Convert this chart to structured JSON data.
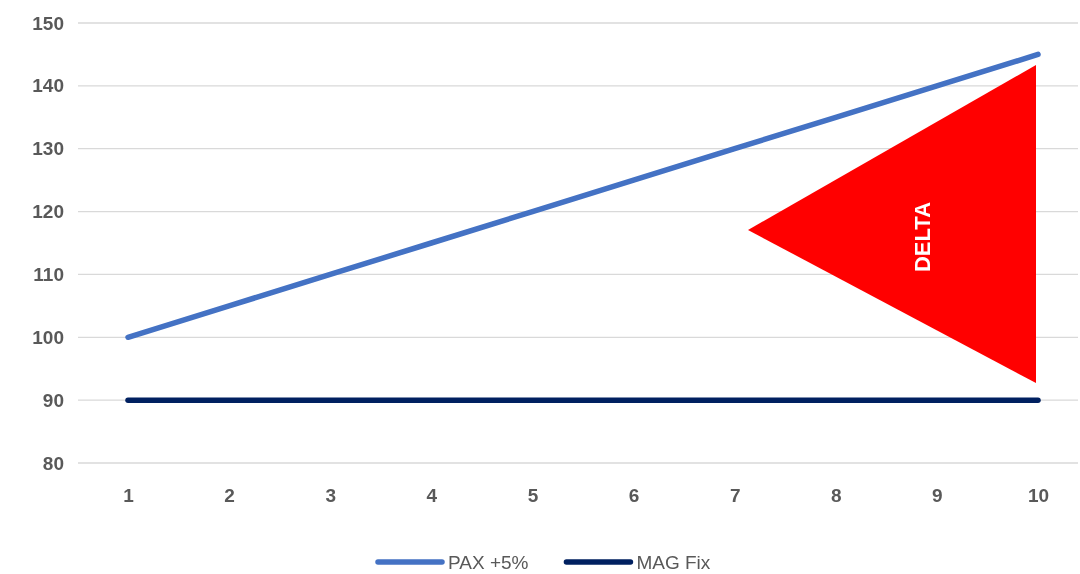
{
  "chart_data": {
    "type": "line",
    "categories": [
      "1",
      "2",
      "3",
      "4",
      "5",
      "6",
      "7",
      "8",
      "9",
      "10"
    ],
    "series": [
      {
        "name": "PAX +5%",
        "color": "#4472c4",
        "values": [
          100,
          105,
          110,
          115,
          120,
          125,
          130,
          135,
          140,
          145
        ]
      },
      {
        "name": "MAG Fix",
        "color": "#002060",
        "values": [
          90,
          90,
          90,
          90,
          90,
          90,
          90,
          90,
          90,
          90
        ]
      }
    ],
    "ylim": [
      80,
      150
    ],
    "yticks": [
      80,
      90,
      100,
      110,
      120,
      130,
      140,
      150
    ],
    "grid": "y",
    "legend": "bottom",
    "marker": "none",
    "line_style": "solid",
    "annotations": [
      "DELTA"
    ]
  }
}
